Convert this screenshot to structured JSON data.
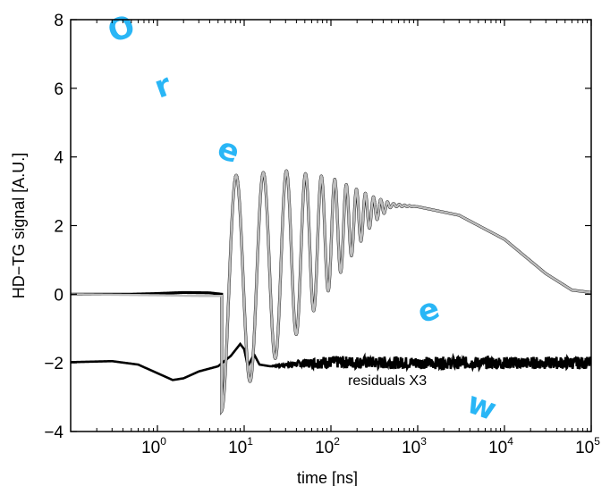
{
  "chart_data": {
    "type": "line",
    "title": "",
    "xlabel": "time [ns]",
    "ylabel": "HD−TG signal [A.U.]",
    "x_scale": "log",
    "xlim": [
      0.1,
      100000
    ],
    "ylim": [
      -4,
      8
    ],
    "grid": false,
    "x_ticks": [
      {
        "value": 1,
        "base": "10",
        "exp": "0"
      },
      {
        "value": 10,
        "base": "10",
        "exp": "1"
      },
      {
        "value": 100,
        "base": "10",
        "exp": "2"
      },
      {
        "value": 1000,
        "base": "10",
        "exp": "3"
      },
      {
        "value": 10000,
        "base": "10",
        "exp": "4"
      },
      {
        "value": 100000,
        "base": "10",
        "exp": "5"
      }
    ],
    "y_ticks": [
      {
        "value": -4,
        "label": "−4"
      },
      {
        "value": -2,
        "label": "−2"
      },
      {
        "value": 0,
        "label": "0"
      },
      {
        "value": 2,
        "label": "2"
      },
      {
        "value": 4,
        "label": "4"
      },
      {
        "value": 6,
        "label": "6"
      },
      {
        "value": 8,
        "label": "8"
      }
    ],
    "annotations": [
      {
        "text": "residuals X3",
        "x": 150,
        "y": -2.6
      }
    ],
    "series": [
      {
        "role": "data",
        "color": "#000000",
        "baseline": [
          [
            0.1,
            0.0
          ],
          [
            0.5,
            0.0
          ],
          [
            1.0,
            0.02
          ],
          [
            2.0,
            0.05
          ],
          [
            4.0,
            0.04
          ],
          [
            5.5,
            0.0
          ]
        ],
        "oscillation_start": 5.5,
        "oscillation_first_min": -0.55,
        "oscillation_first_max": 6.3,
        "envelope_center": [
          [
            5.5,
            0.0
          ],
          [
            10,
            0.4
          ],
          [
            30,
            1.0
          ],
          [
            100,
            1.8
          ],
          [
            300,
            2.45
          ],
          [
            500,
            2.6
          ],
          [
            1000,
            2.55
          ],
          [
            3000,
            2.3
          ],
          [
            10000,
            1.6
          ],
          [
            30000,
            0.6
          ],
          [
            60000,
            0.12
          ],
          [
            100000,
            0.05
          ]
        ],
        "envelope_amplitude": [
          [
            5.5,
            3.4
          ],
          [
            10,
            3.1
          ],
          [
            30,
            2.6
          ],
          [
            100,
            1.6
          ],
          [
            300,
            0.4
          ],
          [
            500,
            0.05
          ],
          [
            1000,
            0.0
          ],
          [
            100000,
            0.0
          ]
        ]
      },
      {
        "role": "fit",
        "color": "#bdbdbd",
        "baseline": [
          [
            0.1,
            0.0
          ],
          [
            1.0,
            -0.03
          ],
          [
            3.0,
            -0.05
          ],
          [
            5.5,
            -0.05
          ]
        ]
      },
      {
        "role": "residuals",
        "name": "residuals X3",
        "color": "#000000",
        "points": [
          [
            0.1,
            -1.98
          ],
          [
            0.3,
            -1.95
          ],
          [
            0.6,
            -2.05
          ],
          [
            1.0,
            -2.3
          ],
          [
            1.5,
            -2.5
          ],
          [
            2.0,
            -2.45
          ],
          [
            3.0,
            -2.25
          ],
          [
            5.0,
            -2.1
          ],
          [
            7.0,
            -1.8
          ],
          [
            9.0,
            -1.45
          ],
          [
            10,
            -1.6
          ],
          [
            11,
            -2.1
          ],
          [
            13,
            -1.75
          ],
          [
            15,
            -2.05
          ],
          [
            20,
            -2.1
          ],
          [
            30,
            -2.05
          ],
          [
            60,
            -2.0
          ],
          [
            100,
            -1.98
          ],
          [
            1000,
            -2.0
          ],
          [
            10000,
            -2.0
          ],
          [
            100000,
            -2.0
          ]
        ],
        "noise_amplitude": 0.18
      }
    ]
  },
  "watermark": {
    "glyphs": [
      "O",
      "r",
      "e",
      "e",
      "w"
    ]
  }
}
